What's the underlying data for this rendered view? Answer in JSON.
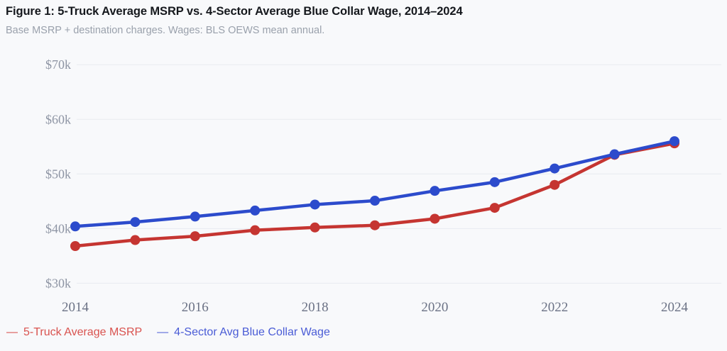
{
  "header": {
    "title": "Figure 1: 5-Truck Average MSRP vs. 4-Sector Average Blue Collar Wage, 2014–2024",
    "subtitle": "Base MSRP + destination charges. Wages: BLS OEWS mean annual."
  },
  "legend": {
    "items": [
      {
        "marker": "—",
        "label": "5-Truck Average MSRP",
        "color": "#d9534f"
      },
      {
        "marker": "—",
        "label": "4-Sector Avg Blue Collar Wage",
        "color": "#4a5cd6"
      }
    ]
  },
  "chart_data": {
    "type": "line",
    "title": "Figure 1: 5-Truck Average MSRP vs. 4-Sector Average Blue Collar Wage, 2014–2024",
    "subtitle": "Base MSRP + destination charges. Wages: BLS OEWS mean annual.",
    "x": [
      2014,
      2015,
      2016,
      2017,
      2018,
      2019,
      2020,
      2021,
      2022,
      2023,
      2024
    ],
    "xticks": [
      2014,
      2016,
      2018,
      2020,
      2022,
      2024
    ],
    "ylim": [
      30000,
      70000
    ],
    "yticks": [
      {
        "value": 30000,
        "label": "$30k"
      },
      {
        "value": 40000,
        "label": "$40k"
      },
      {
        "value": 50000,
        "label": "$50k"
      },
      {
        "value": 60000,
        "label": "$60k"
      },
      {
        "value": 70000,
        "label": "$70k"
      }
    ],
    "grid": "horizontal",
    "legend_position": "bottom-left",
    "series": [
      {
        "name": "5-Truck Average MSRP",
        "color": "#c53531",
        "values": [
          36800,
          37900,
          38600,
          39700,
          40200,
          40600,
          41800,
          43800,
          48000,
          53500,
          55600
        ]
      },
      {
        "name": "4-Sector Avg Blue Collar Wage",
        "color": "#2c4bcc",
        "values": [
          40400,
          41200,
          42200,
          43300,
          44400,
          45100,
          46900,
          48500,
          51000,
          53600,
          56000
        ]
      }
    ]
  },
  "colors": {
    "background": "#f8f9fb",
    "gridline": "#e8ebf0",
    "y_tick_text": "#8e95a4",
    "x_tick_text": "#6b7285",
    "title_text": "#15181d",
    "subtitle_text": "#9aa1ac"
  }
}
